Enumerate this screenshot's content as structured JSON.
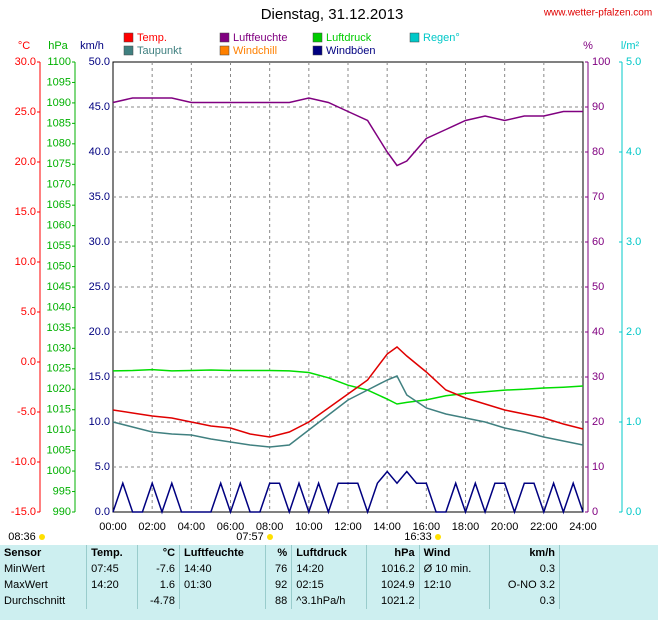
{
  "chart_data": {
    "type": "line",
    "title": "Dienstag, 31.12.2013",
    "site": "www.wetter-pfalzen.com",
    "grid": true,
    "legend": [
      {
        "name": "Temp.",
        "color": "#ff0000"
      },
      {
        "name": "Luftfeuchte",
        "color": "#800080"
      },
      {
        "name": "Luftdruck",
        "color": "#00cc00"
      },
      {
        "name": "Regen°",
        "color": "#00c8c8"
      },
      {
        "name": "Taupunkt",
        "color": "#408080"
      },
      {
        "name": "Windchill",
        "color": "#ff8000"
      },
      {
        "name": "Windböen",
        "color": "#000080"
      }
    ],
    "axes": [
      {
        "label": "°C",
        "color": "#ff0000",
        "ylim": [
          -15,
          30
        ],
        "yticks": [
          {
            "value": 30,
            "label": "30.0"
          },
          {
            "value": 25,
            "label": "25.0"
          },
          {
            "value": 20,
            "label": "20.0"
          },
          {
            "value": 15,
            "label": "15.0"
          },
          {
            "value": 10,
            "label": "10.0"
          },
          {
            "value": 5,
            "label": "5.0"
          },
          {
            "value": 0,
            "label": "0.0"
          },
          {
            "value": -5,
            "label": "-5.0"
          },
          {
            "value": -10,
            "label": "-10.0"
          },
          {
            "value": -15,
            "label": "-15.0"
          }
        ]
      },
      {
        "label": "hPa",
        "color": "#00b000",
        "ylim": [
          990,
          1100
        ],
        "yticks": [
          1100,
          1095,
          1090,
          1085,
          1080,
          1075,
          1070,
          1065,
          1060,
          1055,
          1050,
          1045,
          1040,
          1035,
          1030,
          1025,
          1020,
          1015,
          1010,
          1005,
          1000,
          995,
          990
        ]
      },
      {
        "label": "km/h",
        "color": "#000080",
        "ylim": [
          0,
          50
        ],
        "yticks": [
          {
            "value": 50,
            "label": "50.0"
          },
          {
            "value": 45,
            "label": "45.0"
          },
          {
            "value": 40,
            "label": "40.0"
          },
          {
            "value": 35,
            "label": "35.0"
          },
          {
            "value": 30,
            "label": "30.0"
          },
          {
            "value": 25,
            "label": "25.0"
          },
          {
            "value": 20,
            "label": "20.0"
          },
          {
            "value": 15,
            "label": "15.0"
          },
          {
            "value": 10,
            "label": "10.0"
          },
          {
            "value": 5,
            "label": "5.0"
          },
          {
            "value": 0,
            "label": "0.0"
          }
        ]
      },
      {
        "label": "%",
        "color": "#800080",
        "ylim": [
          0,
          100
        ],
        "yticks": [
          100,
          90,
          80,
          70,
          60,
          50,
          40,
          30,
          20,
          10,
          0
        ]
      },
      {
        "label": "l/m²",
        "color": "#00c8c8",
        "ylim": [
          0,
          5
        ],
        "yticks": [
          {
            "value": 5,
            "label": "5.0"
          },
          {
            "value": 4,
            "label": "4.0"
          },
          {
            "value": 3,
            "label": "3.0"
          },
          {
            "value": 2,
            "label": "2.0"
          },
          {
            "value": 1,
            "label": "1.0"
          },
          {
            "value": 0,
            "label": "0.0"
          }
        ]
      }
    ],
    "xlim": [
      0,
      24
    ],
    "xticks": [
      {
        "value": 0,
        "label": "00:00"
      },
      {
        "value": 2,
        "label": "02:00"
      },
      {
        "value": 4,
        "label": "04:00"
      },
      {
        "value": 6,
        "label": "06:00"
      },
      {
        "value": 8,
        "label": "08:00"
      },
      {
        "value": 10,
        "label": "10:00"
      },
      {
        "value": 12,
        "label": "12:00"
      },
      {
        "value": 14,
        "label": "14:00"
      },
      {
        "value": 16,
        "label": "16:00"
      },
      {
        "value": 18,
        "label": "18:00"
      },
      {
        "value": 20,
        "label": "20:00"
      },
      {
        "value": 22,
        "label": "22:00"
      },
      {
        "value": 24,
        "label": "24:00"
      }
    ],
    "x": [
      0,
      1,
      2,
      3,
      4,
      5,
      6,
      7,
      8,
      9,
      10,
      11,
      12,
      13,
      14,
      14.5,
      15,
      16,
      17,
      18,
      19,
      20,
      21,
      22,
      23,
      24
    ],
    "series": [
      {
        "legend": 1,
        "color": "#800080",
        "axis": 3,
        "values": [
          91,
          92,
          92,
          92,
          91,
          91,
          91,
          91,
          91,
          91,
          92,
          91,
          89,
          87,
          80,
          77,
          78,
          83,
          85,
          87,
          88,
          87,
          88,
          88,
          89,
          89
        ]
      },
      {
        "legend": 2,
        "color": "#00dd00",
        "axis": 1,
        "values": [
          1024.5,
          1024.6,
          1024.8,
          1024.5,
          1024.6,
          1024.7,
          1024.6,
          1024.6,
          1024.6,
          1024.5,
          1024.1,
          1022.8,
          1021.0,
          1019.8,
          1017.6,
          1016.4,
          1016.8,
          1017.4,
          1018.4,
          1019.0,
          1019.4,
          1019.8,
          1020.0,
          1020.3,
          1020.5,
          1020.8
        ]
      },
      {
        "legend": 4,
        "color": "#408080",
        "axis": 0,
        "values": [
          -6.0,
          -6.5,
          -7.0,
          -7.2,
          -7.3,
          -7.7,
          -8.0,
          -8.3,
          -8.5,
          -8.3,
          -6.8,
          -5.3,
          -3.8,
          -2.8,
          -1.8,
          -1.4,
          -3.3,
          -4.6,
          -5.2,
          -5.6,
          -6.0,
          -6.6,
          -7.0,
          -7.5,
          -7.9,
          -8.3
        ]
      },
      {
        "legend": 0,
        "color": "#e00000",
        "axis": 0,
        "values": [
          -4.8,
          -5.1,
          -5.4,
          -5.6,
          -6.0,
          -6.4,
          -6.6,
          -7.2,
          -7.5,
          -7.0,
          -6.0,
          -4.6,
          -3.2,
          -1.8,
          0.8,
          1.5,
          0.6,
          -1.0,
          -2.8,
          -3.6,
          -4.2,
          -4.8,
          -5.2,
          -5.6,
          -6.2,
          -6.7
        ]
      },
      {
        "legend": 6,
        "color": "#000080",
        "axis": 2,
        "x": [
          0,
          0.5,
          1,
          1.5,
          2,
          2.5,
          3,
          3.5,
          4,
          4.5,
          5,
          5.5,
          6,
          6.5,
          7,
          7.5,
          8,
          8.5,
          9,
          9.5,
          10,
          10.5,
          11,
          11.5,
          12,
          12.5,
          13,
          13.5,
          14,
          14.5,
          15,
          15.5,
          16,
          16.5,
          17,
          17.5,
          18,
          18.5,
          19,
          19.5,
          20,
          20.5,
          21,
          21.5,
          22,
          22.5,
          23,
          23.5,
          24
        ],
        "values": [
          0,
          3.2,
          0,
          0,
          3.2,
          0,
          3.2,
          0,
          0,
          0,
          0,
          3.2,
          0,
          3.2,
          0,
          0,
          3.2,
          3.2,
          0,
          3.2,
          0,
          3.2,
          0,
          3.2,
          3.2,
          3.2,
          0,
          3.2,
          4.5,
          3.2,
          4.5,
          3.2,
          3.2,
          0,
          0,
          3.2,
          0,
          3.2,
          0,
          3.2,
          3.2,
          0,
          3.2,
          3.2,
          0,
          3.2,
          0,
          3.2,
          0
        ]
      }
    ],
    "sun_labels": [
      "08:36",
      "07:57",
      "16:33"
    ]
  },
  "table": {
    "header": [
      "Sensor",
      "Temp.",
      "°C",
      "Luftfeuchte",
      "%",
      "Luftdruck",
      "hPa",
      "Wind",
      "km/h"
    ],
    "rows": [
      [
        "MinWert",
        "07:45",
        "-7.6",
        "14:40",
        "76",
        "14:20",
        "1016.2",
        "Ø 10 min.",
        "0.3"
      ],
      [
        "MaxWert",
        "14:20",
        "1.6",
        "01:30",
        "92",
        "02:15",
        "1024.9",
        "12:10",
        "O-NO 3.2"
      ],
      [
        "Durchschnitt",
        null,
        "-4.78",
        null,
        "88",
        "^3.1hPa/h",
        "1021.2",
        null,
        "0.3"
      ]
    ]
  }
}
